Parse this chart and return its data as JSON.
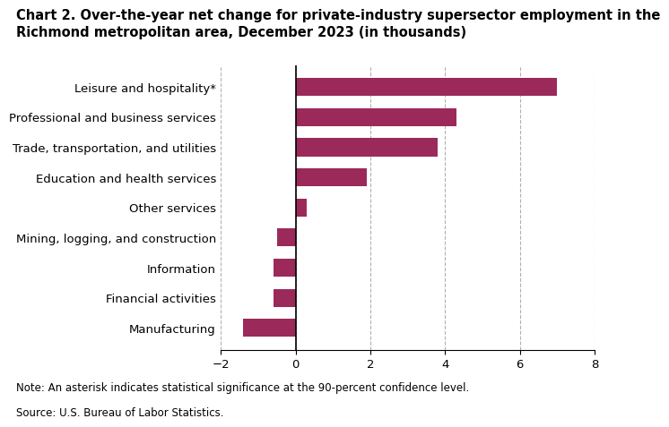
{
  "title_line1": "Chart 2. Over-the-year net change for private-industry supersector employment in the",
  "title_line2": "Richmond metropolitan area, December 2023 (in thousands)",
  "categories": [
    "Manufacturing",
    "Financial activities",
    "Information",
    "Mining, logging, and construction",
    "Other services",
    "Education and health services",
    "Trade, transportation, and utilities",
    "Professional and business services",
    "Leisure and hospitality*"
  ],
  "values": [
    -1.4,
    -0.6,
    -0.6,
    -0.5,
    0.3,
    1.9,
    3.8,
    4.3,
    7.0
  ],
  "bar_color": "#9b2a5a",
  "xlim": [
    -2,
    8
  ],
  "xticks": [
    -2,
    0,
    2,
    4,
    6,
    8
  ],
  "grid_color": "#b0b0b0",
  "note": "Note: An asterisk indicates statistical significance at the 90-percent confidence level.",
  "source": "Source: U.S. Bureau of Labor Statistics.",
  "title_fontsize": 10.5,
  "tick_fontsize": 9.5,
  "note_fontsize": 8.5
}
